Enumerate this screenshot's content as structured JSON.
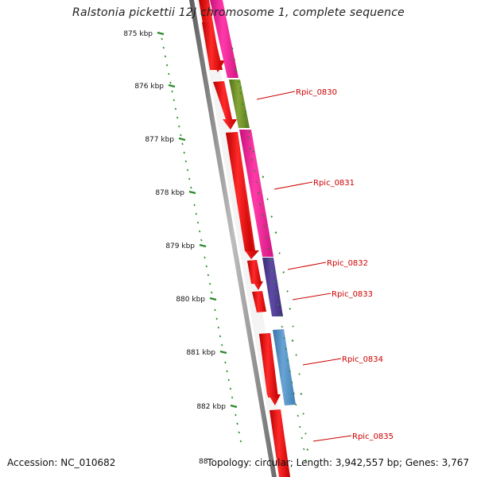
{
  "title": "Ralstonia pickettii 12J chromosome 1, complete sequence",
  "accession": "Accession: NC_010682",
  "stats": "Topology: circular; Length: 3,942,557 bp; Genes: 3,767",
  "bottom_cut_label": "88",
  "kbp_ticks": [
    "875 kbp",
    "876 kbp",
    "877 kbp",
    "878 kbp",
    "879 kbp",
    "880 kbp",
    "881 kbp",
    "882 kbp"
  ],
  "gene_labels": [
    "Rpic_0830",
    "Rpic_0831",
    "Rpic_0832",
    "Rpic_0833",
    "Rpic_0834",
    "Rpic_0835"
  ],
  "colors": {
    "cds": "#ee0000",
    "magenta": "#ee1e94",
    "olive": "#6e8c26",
    "purple": "#4b3a8a",
    "steel_blue": "#4f8cc0",
    "tick": "#2a8a2a",
    "backbone": "#888888",
    "label": "#cc0000"
  }
}
